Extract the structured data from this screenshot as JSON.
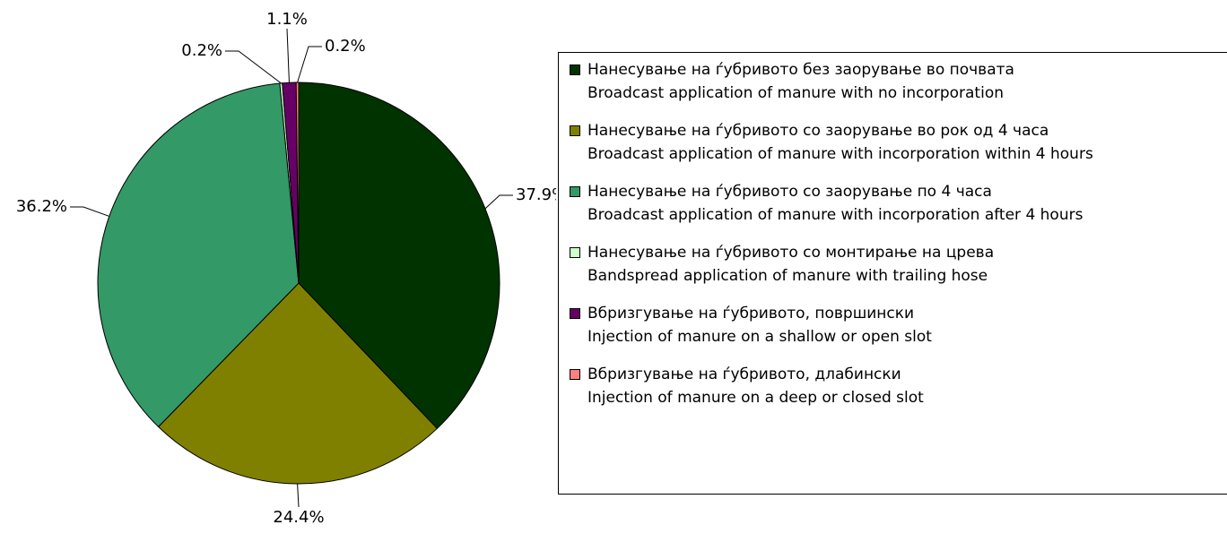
{
  "chart_data": {
    "type": "pie",
    "categories": [
      "Нанесување на ѓубривото без заорување во почвата\nBroadcast application of manure with no incorporation",
      "Нанесување на ѓубривото со заорување во рок од 4 часа\nBroadcast application of manure with incorporation within 4 hours",
      "Нанесување на ѓубривото со заорување по 4 часа\nBroadcast application of manure with incorporation after 4 hours",
      "Нанесување на ѓубривото со монтирање на црева\nBandspread application of manure with trailing hose",
      "Вбризгување на ѓубривото, површински\nInjection of manure on a shallow or open slot",
      "Вбризгување на ѓубривото, длабински\nInjection of manure on a deep or closed slot"
    ],
    "values": [
      37.9,
      24.4,
      36.2,
      0.2,
      1.1,
      0.2
    ],
    "value_labels": [
      "37.9%",
      "24.4%",
      "36.2%",
      "0.2%",
      "1.1%",
      "0.2%"
    ],
    "colors": [
      "#003300",
      "#808000",
      "#339966",
      "#ccffcc",
      "#660066",
      "#ff8080"
    ],
    "legend": "right"
  }
}
